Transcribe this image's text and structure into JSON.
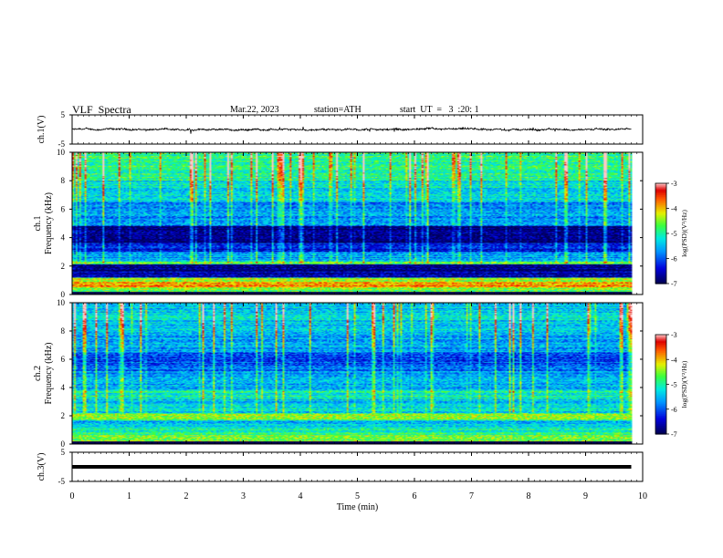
{
  "header": {
    "title": "VLF  Spectra",
    "date": "Mar.22, 2023",
    "station": "station=ATH",
    "start_ut": "start  UT  =   3  :20: 1"
  },
  "chart_data": [
    {
      "type": "line",
      "panel": "ch1-waveform",
      "ylabel": "ch.1(V)",
      "ylim": [
        -5,
        5
      ],
      "yticks": [
        "5",
        "-5"
      ],
      "x_range_min": [
        0,
        9.8
      ],
      "series": [
        {
          "baseline": 0,
          "noise_amplitude": 0.6
        }
      ],
      "grid": false
    },
    {
      "type": "heatmap",
      "panel": "ch1-spectrogram",
      "ylabel": "ch.1\nFrequency (kHz)",
      "ylim": [
        0,
        10
      ],
      "yticks": [
        "0",
        "2",
        "4",
        "6",
        "8",
        "10"
      ],
      "x_range_min": [
        0,
        9.8
      ],
      "colorbar": {
        "label": "log(PSD)(V²/Hz)",
        "ticks": [
          "-3",
          "-4",
          "-5",
          "-6",
          "-7"
        ],
        "range": [
          -7,
          -3
        ]
      },
      "bands": [
        {
          "f": [
            0.2,
            0.5
          ],
          "level": -4.6
        },
        {
          "f": [
            0.5,
            0.9
          ],
          "level": -3.8
        },
        {
          "f": [
            0.9,
            1.2
          ],
          "level": -4.4
        },
        {
          "f": [
            1.2,
            1.6
          ],
          "level": -6.6
        },
        {
          "f": [
            1.6,
            2.1
          ],
          "level": -6.8
        },
        {
          "f": [
            2.1,
            2.3
          ],
          "level": -4.8
        },
        {
          "f": [
            2.3,
            3.0
          ],
          "level": -5.6
        },
        {
          "f": [
            3.0,
            3.6
          ],
          "level": -6.4
        },
        {
          "f": [
            3.6,
            4.8
          ],
          "level": -6.8
        },
        {
          "f": [
            4.8,
            6.5
          ],
          "level": -5.7
        },
        {
          "f": [
            6.5,
            8.0
          ],
          "level": -5.3
        },
        {
          "f": [
            8.0,
            10.0
          ],
          "level": -4.9
        }
      ]
    },
    {
      "type": "heatmap",
      "panel": "ch2-spectrogram",
      "ylabel": "ch.2\nFrequency (kHz)",
      "ylim": [
        0,
        10
      ],
      "yticks": [
        "0",
        "2",
        "4",
        "6",
        "8",
        "10"
      ],
      "x_range_min": [
        0,
        9.8
      ],
      "colorbar": {
        "label": "log(PSD)(V²/Hz)",
        "ticks": [
          "-3",
          "-4",
          "-5",
          "-6",
          "-7"
        ],
        "range": [
          -7,
          -3
        ]
      },
      "bands": [
        {
          "f": [
            0.2,
            0.6
          ],
          "level": -4.6
        },
        {
          "f": [
            0.6,
            1.2
          ],
          "level": -5.0
        },
        {
          "f": [
            1.2,
            1.7
          ],
          "level": -5.4
        },
        {
          "f": [
            1.7,
            2.2
          ],
          "level": -4.5
        },
        {
          "f": [
            2.2,
            3.2
          ],
          "level": -5.4
        },
        {
          "f": [
            3.2,
            3.8
          ],
          "level": -5.1
        },
        {
          "f": [
            3.8,
            5.2
          ],
          "level": -5.6
        },
        {
          "f": [
            5.2,
            6.5
          ],
          "level": -6.0
        },
        {
          "f": [
            6.5,
            8.0
          ],
          "level": -5.6
        },
        {
          "f": [
            8.0,
            10.0
          ],
          "level": -5.4
        }
      ]
    },
    {
      "type": "line",
      "panel": "ch3-waveform",
      "ylabel": "ch.3(V)",
      "ylim": [
        -5,
        5
      ],
      "yticks": [
        "5",
        "-5"
      ],
      "x_range_min": [
        0,
        9.8
      ],
      "series": [
        {
          "baseline": 0
        }
      ],
      "grid": false
    }
  ],
  "x_axis": {
    "label": "Time  (min)",
    "ticks": [
      "0",
      "1",
      "2",
      "3",
      "4",
      "5",
      "6",
      "7",
      "8",
      "9",
      "10"
    ],
    "xlim": [
      0,
      10
    ]
  },
  "colors": {
    "background": "#ffffff",
    "axis": "#000000",
    "waveform": "#000000"
  }
}
